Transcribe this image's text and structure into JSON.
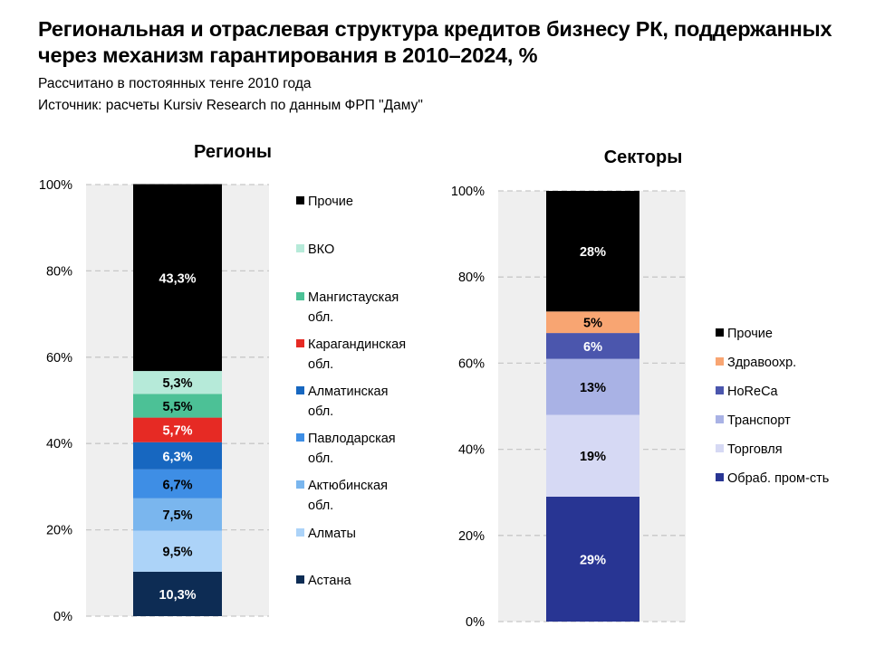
{
  "title": "Региональная и отраслевая структура кредитов бизнесу РК, поддержанных через механизм гарантирования в 2010–2024, %",
  "subtitle1": "Рассчитано в постоянных тенге 2010 года",
  "subtitle2": "Источник: расчеты Kursiv Research по данным ФРП \"Даму\"",
  "chart_data": [
    {
      "type": "bar",
      "stacked": true,
      "title": "Регионы",
      "ylim": [
        0,
        100
      ],
      "yticks": [
        "0%",
        "20%",
        "40%",
        "60%",
        "80%",
        "100%"
      ],
      "grid": true,
      "legend_position": "right",
      "series": [
        {
          "name": "Астана",
          "value": 10.3,
          "label": "10,3%",
          "color": "#0d2c54",
          "label_color": "#ffffff"
        },
        {
          "name": "Алматы",
          "value": 9.5,
          "label": "9,5%",
          "color": "#acd3f8",
          "label_color": "#000000"
        },
        {
          "name": "Актюбинская обл.",
          "value": 7.5,
          "label": "7,5%",
          "color": "#7ab6ee",
          "label_color": "#000000"
        },
        {
          "name": "Павлодарская обл.",
          "value": 6.7,
          "label": "6,7%",
          "color": "#3e8ee5",
          "label_color": "#000000"
        },
        {
          "name": "Алматинская обл.",
          "value": 6.3,
          "label": "6,3%",
          "color": "#1767c0",
          "label_color": "#ffffff"
        },
        {
          "name": "Карагандинская обл.",
          "value": 5.7,
          "label": "5,7%",
          "color": "#e62a24",
          "label_color": "#ffffff"
        },
        {
          "name": "Мангистауская обл.",
          "value": 5.5,
          "label": "5,5%",
          "color": "#4cc196",
          "label_color": "#000000"
        },
        {
          "name": "ВКО",
          "value": 5.3,
          "label": "5,3%",
          "color": "#b6ead9",
          "label_color": "#000000"
        },
        {
          "name": "Прочие",
          "value": 43.3,
          "label": "43,3%",
          "color": "#000000",
          "label_color": "#ffffff"
        }
      ]
    },
    {
      "type": "bar",
      "stacked": true,
      "title": "Секторы",
      "ylim": [
        0,
        100
      ],
      "yticks": [
        "0%",
        "20%",
        "40%",
        "60%",
        "80%",
        "100%"
      ],
      "grid": true,
      "legend_position": "right",
      "series": [
        {
          "name": "Обраб. пром-сть",
          "value": 29,
          "label": "29%",
          "color": "#283593",
          "label_color": "#ffffff"
        },
        {
          "name": "Торговля",
          "value": 19,
          "label": "19%",
          "color": "#d6d9f4",
          "label_color": "#000000"
        },
        {
          "name": "Транспорт",
          "value": 13,
          "label": "13%",
          "color": "#a9b2e5",
          "label_color": "#000000"
        },
        {
          "name": "HoReCa",
          "value": 6,
          "label": "6%",
          "color": "#4b56ad",
          "label_color": "#ffffff"
        },
        {
          "name": "Здравоохр.",
          "value": 5,
          "label": "5%",
          "color": "#f8a572",
          "label_color": "#000000"
        },
        {
          "name": "Прочие",
          "value": 28,
          "label": "28%",
          "color": "#000000",
          "label_color": "#ffffff"
        }
      ]
    }
  ]
}
